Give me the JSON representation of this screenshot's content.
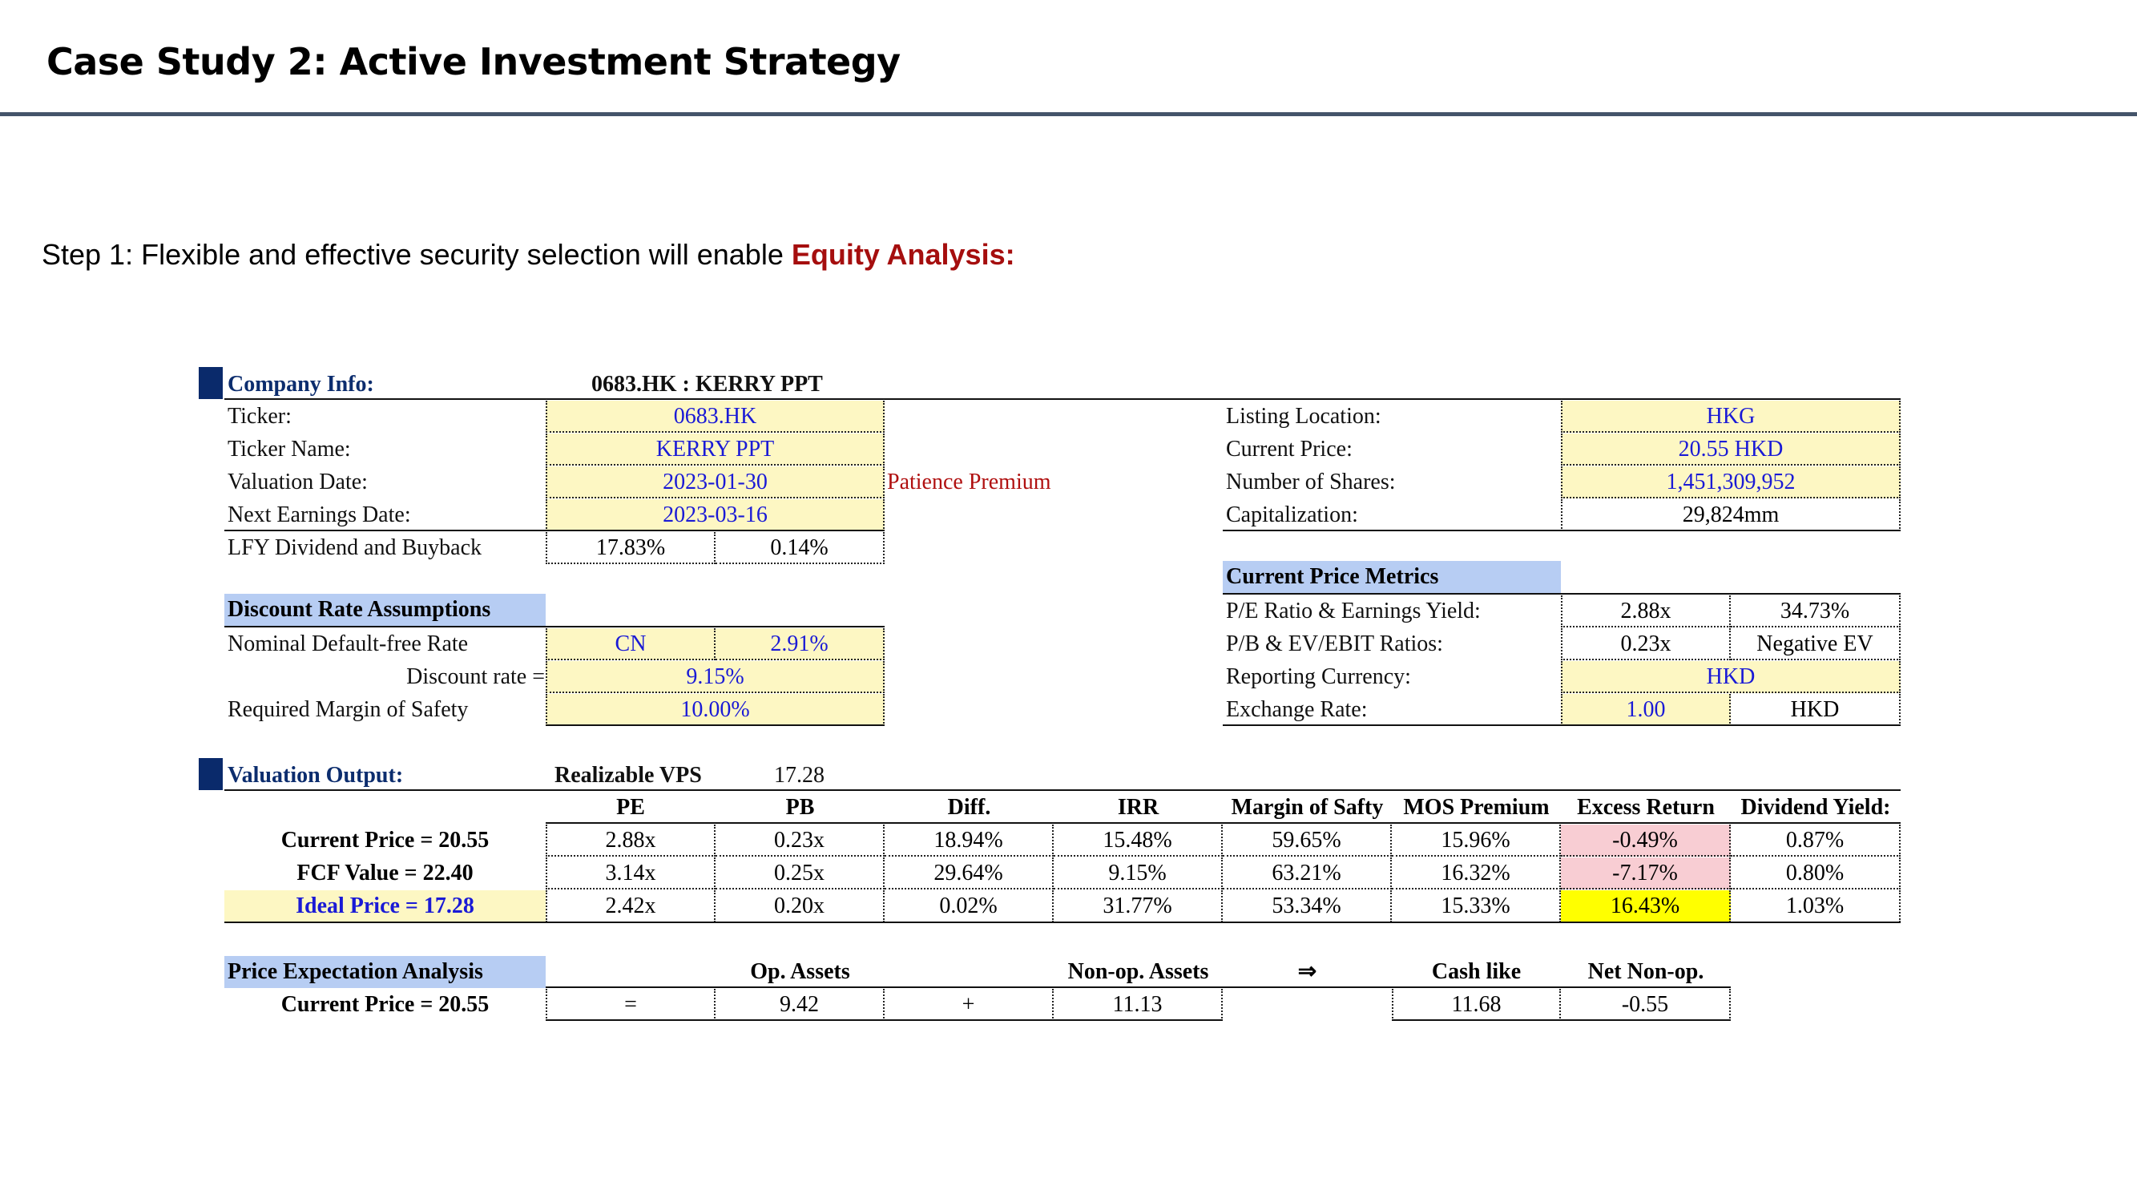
{
  "page": {
    "title": "Case Study 2: Active Investment Strategy",
    "step_prefix": "Step 1: Flexible and effective security selection will enable ",
    "step_highlight": "Equity Analysis:"
  },
  "company": {
    "header": "Company Info:",
    "name_display": "0683.HK : KERRY PPT",
    "ticker_label": "Ticker:",
    "ticker": "0683.HK",
    "ticker_name_label": "Ticker Name:",
    "ticker_name": "KERRY PPT",
    "valuation_date_label": "Valuation Date:",
    "valuation_date": "2023-01-30",
    "next_earnings_label": "Next Earnings Date:",
    "next_earnings": "2023-03-16",
    "lfy_label": "LFY Dividend and Buyback",
    "lfy_dividend": "17.83%",
    "lfy_buyback": "0.14%",
    "patience_premium": "Patience Premium",
    "listing_label": "Listing Location:",
    "listing": "HKG",
    "price_label": "Current Price:",
    "price": "20.55 HKD",
    "shares_label": "Number of Shares:",
    "shares": "1,451,309,952",
    "cap_label": "Capitalization:",
    "cap": "29,824mm"
  },
  "discount": {
    "header": "Discount Rate Assumptions",
    "nominal_label": "Nominal Default-free Rate",
    "nominal_country": "CN",
    "nominal_rate": "2.91%",
    "rate_label": "Discount rate =",
    "rate": "9.15%",
    "mos_label": "Required Margin of Safety",
    "mos": "10.00%"
  },
  "metrics": {
    "header": "Current Price Metrics",
    "pe_label": "P/E Ratio & Earnings Yield:",
    "pe": "2.88x",
    "ey": "34.73%",
    "pb_label": "P/B & EV/EBIT Ratios:",
    "pb": "0.23x",
    "ev": "Negative EV",
    "currency_label": "Reporting Currency:",
    "currency": "HKD",
    "fx_label": "Exchange Rate:",
    "fx": "1.00",
    "fx_cur": "HKD"
  },
  "valuation": {
    "header": "Valuation Output:",
    "vps_label": "Realizable VPS",
    "vps": "17.28",
    "columns": [
      "PE",
      "PB",
      "Diff.",
      "IRR",
      "Margin of Safty",
      "MOS Premium",
      "Excess Return",
      "Dividend Yield:"
    ],
    "rows": [
      {
        "label": "Current Price = 20.55",
        "values": [
          "2.88x",
          "0.23x",
          "18.94%",
          "15.48%",
          "59.65%",
          "15.96%",
          "-0.49%",
          "0.87%"
        ]
      },
      {
        "label": "FCF Value = 22.40",
        "values": [
          "3.14x",
          "0.25x",
          "29.64%",
          "9.15%",
          "63.21%",
          "16.32%",
          "-7.17%",
          "0.80%"
        ]
      },
      {
        "label": "Ideal Price = 17.28",
        "values": [
          "2.42x",
          "0.20x",
          "0.02%",
          "31.77%",
          "53.34%",
          "15.33%",
          "16.43%",
          "1.03%"
        ]
      }
    ]
  },
  "price_expectation": {
    "header": "Price Expectation Analysis",
    "op_assets_label": "Op. Assets",
    "nonop_label": "Non-op. Assets",
    "arrow": "⇒",
    "cash_label": "Cash like",
    "netnonop_label": "Net Non-op.",
    "row_label": "Current Price = 20.55",
    "eq": "=",
    "op_assets": "9.42",
    "plus": "+",
    "nonop": "11.13",
    "cash": "11.68",
    "netnonop": "-0.55"
  }
}
